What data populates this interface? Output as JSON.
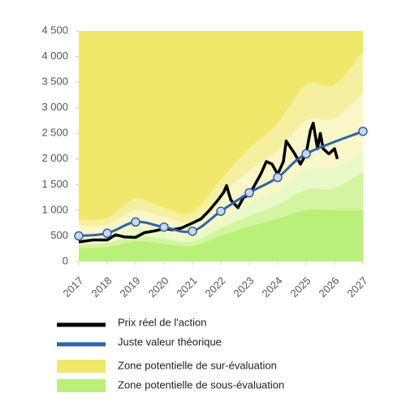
{
  "chart_data": {
    "type": "line",
    "ylim": [
      0,
      4500
    ],
    "yticks": [
      0,
      500,
      {
        "value": 1000,
        "label": "1 000"
      },
      {
        "value": 1500,
        "label": "1 500"
      },
      {
        "value": 2000,
        "label": "2 000"
      },
      {
        "value": 2500,
        "label": "2 500"
      },
      {
        "value": 3000,
        "label": "3 000"
      },
      {
        "value": 3500,
        "label": "3 500"
      },
      {
        "value": 4000,
        "label": "4 000"
      },
      {
        "value": 4500,
        "label": "4 500"
      }
    ],
    "xlim": [
      2017,
      2027
    ],
    "xticks": [
      2017,
      2018,
      2019,
      2020,
      2021,
      2022,
      2023,
      2024,
      2025,
      2026,
      2027
    ],
    "x": [
      2017,
      2018,
      2019,
      2020,
      2021,
      2022,
      2023,
      2024,
      2025,
      2026,
      2027
    ],
    "areas": [
      {
        "name": "Zone potentielle de sur-évaluation",
        "color": "#f0e86a",
        "values": [
          4500,
          4500,
          4500,
          4500,
          4500,
          4500,
          4500,
          4500,
          4500,
          4500,
          4500
        ]
      },
      {
        "color": "#f5f0a0",
        "values": [
          820,
          850,
          1230,
          1050,
          960,
          1600,
          2200,
          2700,
          3450,
          3450,
          4100
        ]
      },
      {
        "color": "#f9f6c8",
        "values": [
          700,
          720,
          1000,
          870,
          780,
          1300,
          1770,
          2150,
          2750,
          2800,
          3300
        ]
      },
      {
        "color": "#e9f9c8",
        "values": [
          430,
          460,
          650,
          570,
          500,
          830,
          1140,
          1400,
          1800,
          1830,
          2150
        ]
      },
      {
        "color": "#d4f5a0",
        "values": [
          330,
          360,
          510,
          440,
          390,
          650,
          890,
          1100,
          1400,
          1430,
          1750
        ]
      },
      {
        "name": "Zone potentielle de sous-évaluation",
        "color": "#b8f07a",
        "values": [
          260,
          280,
          390,
          340,
          300,
          500,
          680,
          830,
          1000,
          1000,
          1000
        ]
      }
    ],
    "series": [
      {
        "name": "Prix réel de l'action",
        "color": "#000000",
        "x": [
          2017,
          2017.5,
          2018,
          2018.3,
          2018.6,
          2019,
          2019.3,
          2019.7,
          2020,
          2020.3,
          2020.6,
          2021,
          2021.3,
          2021.6,
          2021.9,
          2022.1,
          2022.2,
          2022.35,
          2022.6,
          2022.8,
          2023,
          2023.2,
          2023.4,
          2023.6,
          2023.8,
          2024,
          2024.2,
          2024.3,
          2024.6,
          2024.8,
          2025,
          2025.15,
          2025.25,
          2025.4,
          2025.5,
          2025.6,
          2025.8,
          2026,
          2026.1
        ],
        "values": [
          380,
          420,
          420,
          520,
          480,
          470,
          560,
          600,
          640,
          620,
          650,
          750,
          830,
          1000,
          1200,
          1350,
          1480,
          1200,
          1050,
          1250,
          1300,
          1500,
          1700,
          1950,
          1900,
          1700,
          1950,
          2350,
          2100,
          1900,
          2100,
          2550,
          2700,
          2200,
          2500,
          2200,
          2100,
          2200,
          2000
        ]
      },
      {
        "name": "Juste valeur théorique",
        "color": "#2e64a8",
        "markers": true,
        "x": [
          2017,
          2018,
          2019,
          2020,
          2021,
          2022,
          2023,
          2024,
          2025,
          2027
        ],
        "values": [
          500,
          550,
          770,
          670,
          590,
          980,
          1340,
          1640,
          2100,
          2540
        ]
      }
    ]
  }
}
